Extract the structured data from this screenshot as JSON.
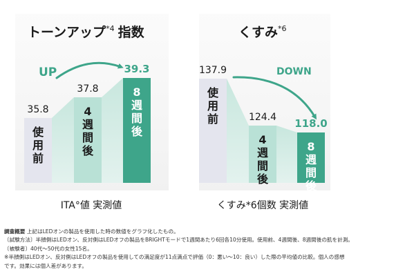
{
  "chart_data": [
    {
      "type": "bar",
      "title": "トーンアップ",
      "title_superscript": "*4",
      "title_suffix": "指数",
      "categories": [
        "使用前",
        "4週間後",
        "8週間後"
      ],
      "values": [
        35.8,
        37.8,
        39.3
      ],
      "value_labels": [
        "35.8",
        "37.8",
        "39.3"
      ],
      "trend_label": "UP",
      "caption": "ITA°値 実測値",
      "colors": [
        "#e4e5ee",
        "#b9e1d6",
        "#3ea58a"
      ],
      "value_label_colors": [
        "#1a1a1a",
        "#1a1a1a",
        "#3ea58a"
      ],
      "category_label_colors": [
        "#1a1a1a",
        "#1a1a1a",
        "#ffffff"
      ],
      "trend_color": "#3ea58a"
    },
    {
      "type": "bar",
      "title": "くすみ",
      "title_superscript": "*6",
      "title_suffix": "",
      "categories": [
        "使用前",
        "4週間後",
        "8週間後"
      ],
      "values": [
        137.9,
        124.4,
        118.0
      ],
      "value_labels": [
        "137.9",
        "124.4",
        "118.0"
      ],
      "trend_label": "DOWN",
      "caption": "くすみ*6個数 実測値",
      "colors": [
        "#e4e5ee",
        "#b9e1d6",
        "#3ea58a"
      ],
      "value_label_colors": [
        "#1a1a1a",
        "#1a1a1a",
        "#3ea58a"
      ],
      "category_label_colors": [
        "#1a1a1a",
        "#1a1a1a",
        "#ffffff"
      ],
      "trend_color": "#3ea58a"
    }
  ],
  "notes": {
    "heading": "調査概要",
    "line1": "上記はLEDオンの製品を使用した時の数値をグラフ化したもの。",
    "line2": "〔試験方法〕半顔側はLEDオン、反対側はLEDオフの製品をBRIGHTモードで1週間あたり6回各10分使用。使用前、4週間後、8週間後の肌を計測。",
    "line3": "〔被験者〕40代～50代の女性15名。",
    "line4": "※半顔側はLEDオン、反対側はLEDオフの製品を使用しての満足度が11点満点で評価（0：悪い～10：良い）した際の平均値の比較。個人の感想",
    "line5": "です。効果には個人差があります。"
  }
}
